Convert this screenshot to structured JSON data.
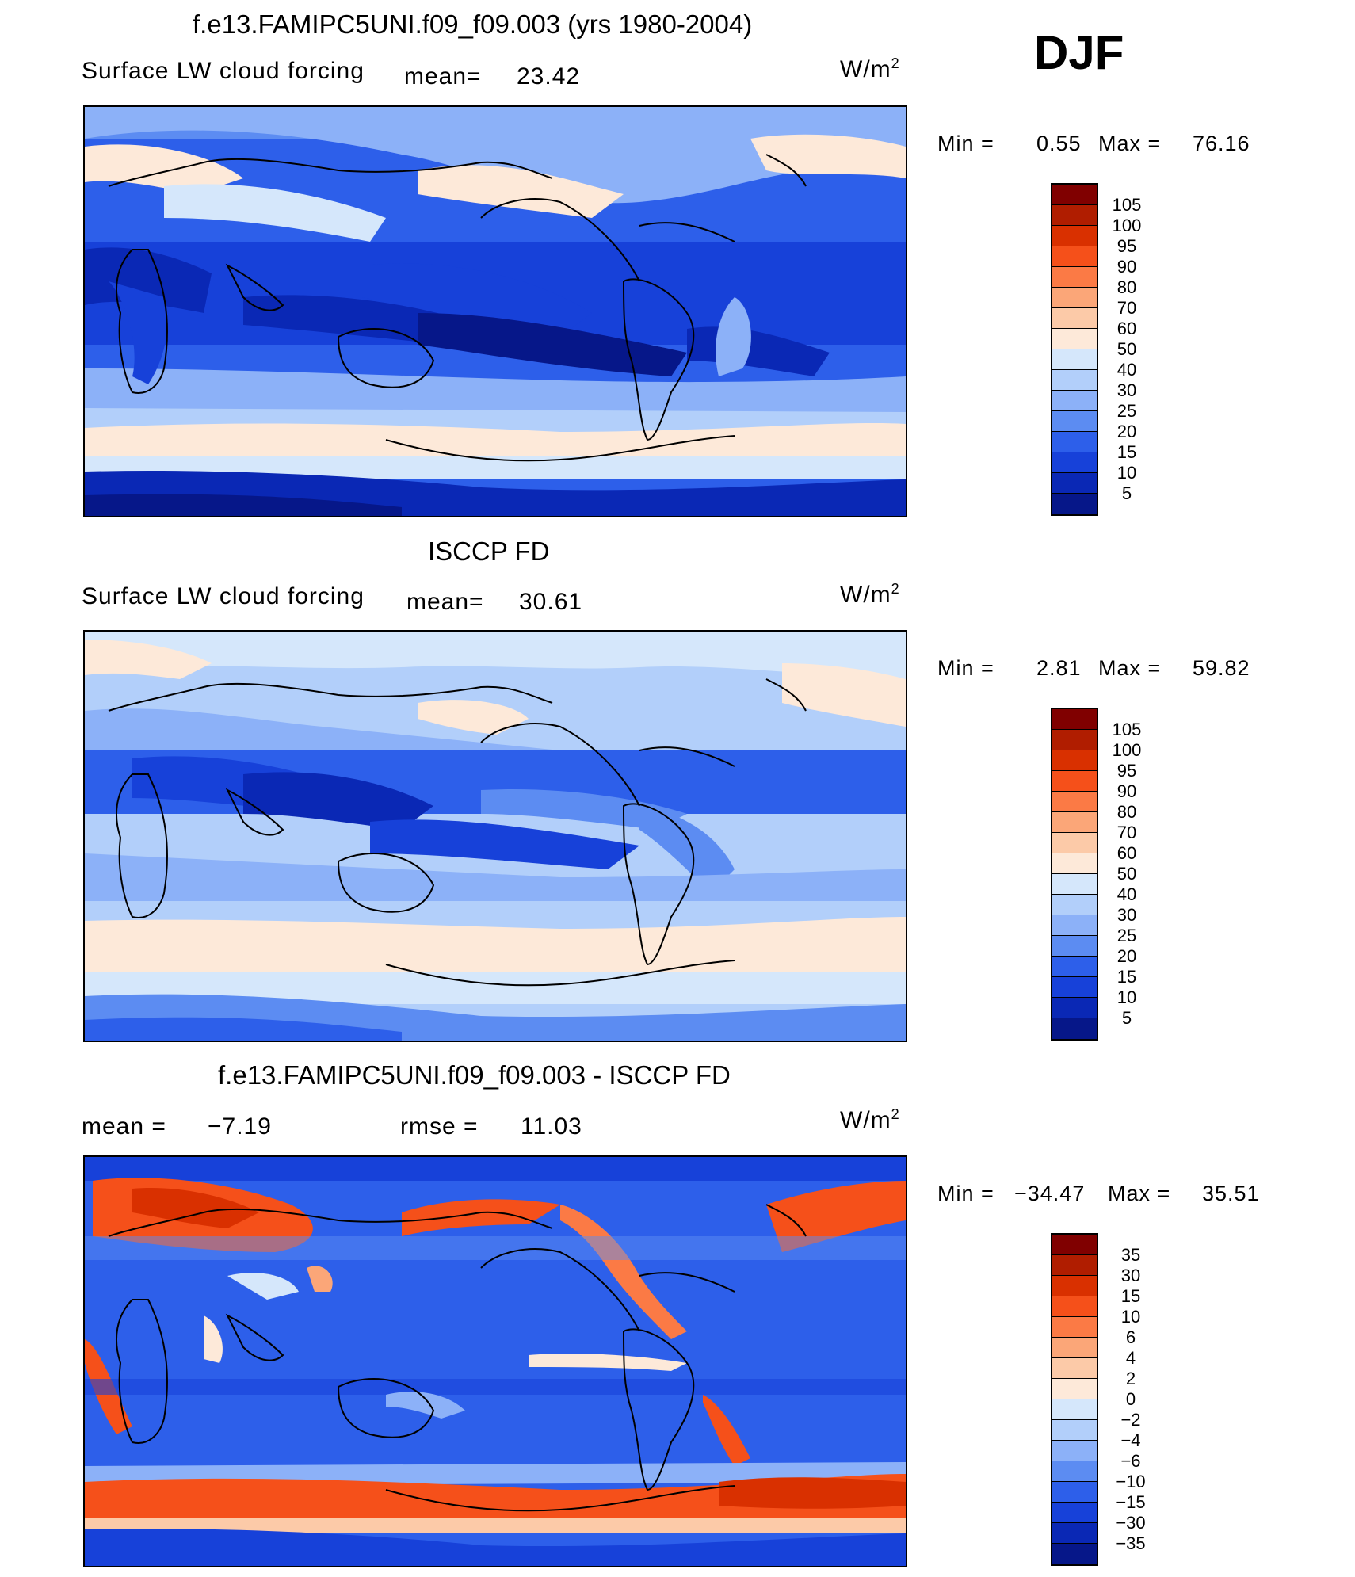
{
  "season": "DJF",
  "panels": [
    {
      "title": "f.e13.FAMIPC5UNI.f09_f09.003 (yrs 1980-2004)",
      "left_label": "Surface LW cloud forcing",
      "mean_label": "mean=",
      "mean_value": "23.42",
      "units": "W/m",
      "units_exp": "2",
      "min_label": "Min =",
      "min_value": "0.55",
      "max_label": "Max =",
      "max_value": "76.16",
      "colorbar_labels": [
        "105",
        "100",
        "95",
        "90",
        "80",
        "70",
        "60",
        "50",
        "40",
        "30",
        "25",
        "20",
        "15",
        "10",
        "5"
      ]
    },
    {
      "title": "ISCCP FD",
      "left_label": "Surface LW cloud forcing",
      "mean_label": "mean=",
      "mean_value": "30.61",
      "units": "W/m",
      "units_exp": "2",
      "min_label": "Min =",
      "min_value": "2.81",
      "max_label": "Max =",
      "max_value": "59.82",
      "colorbar_labels": [
        "105",
        "100",
        "95",
        "90",
        "80",
        "70",
        "60",
        "50",
        "40",
        "30",
        "25",
        "20",
        "15",
        "10",
        "5"
      ]
    },
    {
      "title": "f.e13.FAMIPC5UNI.f09_f09.003 - ISCCP FD",
      "mean_label": "mean =",
      "mean_value": "−7.19",
      "rmse_label": "rmse =",
      "rmse_value": "11.03",
      "units": "W/m",
      "units_exp": "2",
      "min_label": "Min =",
      "min_value": "−34.47",
      "max_label": "Max =",
      "max_value": "35.51",
      "colorbar_labels": [
        "35",
        "30",
        "15",
        "10",
        "6",
        "4",
        "2",
        "0",
        "−2",
        "−4",
        "−6",
        "−10",
        "−15",
        "−30",
        "−35"
      ]
    }
  ],
  "colors": {
    "scale": [
      "#800000",
      "#b01d00",
      "#d93000",
      "#f5501a",
      "#fb7a45",
      "#fba678",
      "#fccaa8",
      "#fde9d9",
      "#d5e7fb",
      "#b2cffa",
      "#8cb1f8",
      "#5c8cf2",
      "#2d5fea",
      "#1741d9",
      "#0a28b5",
      "#061789"
    ],
    "ocean_deep": "#1131b8",
    "ocean_mid": "#2d5fea",
    "light_blue": "#b2cffa",
    "pale": "#fde9d9"
  }
}
